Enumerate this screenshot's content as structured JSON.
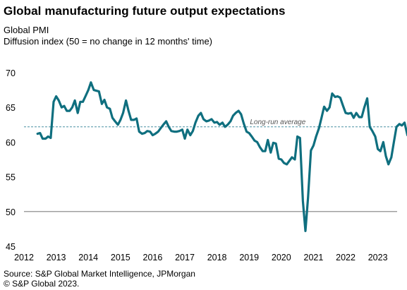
{
  "header": {
    "title": "Global manufacturing future output expectations",
    "subtitle_line1": "Global  PMI",
    "subtitle_line2": "Diffusion index  (50 = no change in 12 months' time)"
  },
  "footer": {
    "source": "Source: S&P Global Market Intelligence, JPMorgan",
    "copyright": "© S&P Global 2023."
  },
  "colors": {
    "series": "#0f6f7f",
    "reference": "#808080",
    "average": "#4a90a4"
  },
  "chart_data": {
    "type": "line",
    "title": "Global manufacturing future output expectations",
    "xlabel": "",
    "ylabel": "Diffusion index  (50 = no change in 12 months' time)",
    "xlim": [
      2012,
      2023.6
    ],
    "ylim": [
      45,
      70
    ],
    "x_ticks": [
      2012,
      2013,
      2014,
      2015,
      2016,
      2017,
      2018,
      2019,
      2020,
      2021,
      2022,
      2023
    ],
    "y_ticks": [
      45,
      50,
      55,
      60,
      65,
      70
    ],
    "grid": false,
    "reference_lines": [
      {
        "y": 50,
        "style": "solid",
        "label": ""
      },
      {
        "y": 62.2,
        "style": "dashed",
        "label": "Long-run average"
      }
    ],
    "series": [
      {
        "name": "Global PMI",
        "points": [
          [
            2012.42,
            61.2
          ],
          [
            2012.5,
            61.3
          ],
          [
            2012.58,
            60.5
          ],
          [
            2012.67,
            60.5
          ],
          [
            2012.75,
            60.8
          ],
          [
            2012.83,
            60.6
          ],
          [
            2012.92,
            65.8
          ],
          [
            2013.0,
            66.6
          ],
          [
            2013.08,
            66.0
          ],
          [
            2013.17,
            65.0
          ],
          [
            2013.25,
            65.2
          ],
          [
            2013.33,
            64.5
          ],
          [
            2013.42,
            64.5
          ],
          [
            2013.5,
            65.0
          ],
          [
            2013.58,
            66.0
          ],
          [
            2013.67,
            64.2
          ],
          [
            2013.75,
            65.8
          ],
          [
            2013.83,
            65.8
          ],
          [
            2013.92,
            66.7
          ],
          [
            2014.0,
            67.5
          ],
          [
            2014.08,
            68.6
          ],
          [
            2014.17,
            67.5
          ],
          [
            2014.25,
            67.4
          ],
          [
            2014.33,
            67.3
          ],
          [
            2014.42,
            65.5
          ],
          [
            2014.5,
            66.1
          ],
          [
            2014.58,
            65.0
          ],
          [
            2014.67,
            64.8
          ],
          [
            2014.75,
            63.5
          ],
          [
            2014.83,
            63.0
          ],
          [
            2014.92,
            62.5
          ],
          [
            2015.0,
            63.2
          ],
          [
            2015.08,
            64.2
          ],
          [
            2015.17,
            66.0
          ],
          [
            2015.25,
            64.5
          ],
          [
            2015.33,
            63.2
          ],
          [
            2015.42,
            63.2
          ],
          [
            2015.5,
            63.4
          ],
          [
            2015.58,
            61.5
          ],
          [
            2015.67,
            61.2
          ],
          [
            2015.75,
            61.3
          ],
          [
            2015.83,
            61.6
          ],
          [
            2015.92,
            61.5
          ],
          [
            2016.0,
            61.0
          ],
          [
            2016.08,
            61.2
          ],
          [
            2016.17,
            61.5
          ],
          [
            2016.25,
            62.0
          ],
          [
            2016.33,
            62.5
          ],
          [
            2016.42,
            63.0
          ],
          [
            2016.5,
            62.2
          ],
          [
            2016.58,
            61.6
          ],
          [
            2016.67,
            61.5
          ],
          [
            2016.75,
            61.5
          ],
          [
            2016.83,
            61.6
          ],
          [
            2016.92,
            61.8
          ],
          [
            2017.0,
            60.5
          ],
          [
            2017.08,
            61.8
          ],
          [
            2017.17,
            61.0
          ],
          [
            2017.25,
            61.6
          ],
          [
            2017.33,
            62.8
          ],
          [
            2017.42,
            63.8
          ],
          [
            2017.5,
            64.2
          ],
          [
            2017.58,
            63.3
          ],
          [
            2017.67,
            63.0
          ],
          [
            2017.75,
            63.1
          ],
          [
            2017.83,
            63.3
          ],
          [
            2017.92,
            62.8
          ],
          [
            2018.0,
            62.9
          ],
          [
            2018.08,
            62.5
          ],
          [
            2018.17,
            62.8
          ],
          [
            2018.25,
            62.2
          ],
          [
            2018.33,
            62.5
          ],
          [
            2018.42,
            63.0
          ],
          [
            2018.5,
            63.8
          ],
          [
            2018.58,
            64.2
          ],
          [
            2018.67,
            64.5
          ],
          [
            2018.75,
            64.0
          ],
          [
            2018.83,
            62.7
          ],
          [
            2018.92,
            61.5
          ],
          [
            2019.0,
            61.3
          ],
          [
            2019.08,
            60.8
          ],
          [
            2019.17,
            60.2
          ],
          [
            2019.25,
            60.0
          ],
          [
            2019.33,
            59.3
          ],
          [
            2019.42,
            58.7
          ],
          [
            2019.5,
            58.7
          ],
          [
            2019.58,
            60.3
          ],
          [
            2019.67,
            58.5
          ],
          [
            2019.75,
            59.9
          ],
          [
            2019.83,
            59.8
          ],
          [
            2019.92,
            57.6
          ],
          [
            2020.0,
            57.5
          ],
          [
            2020.08,
            57.0
          ],
          [
            2020.17,
            56.8
          ],
          [
            2020.25,
            57.3
          ],
          [
            2020.33,
            57.8
          ],
          [
            2020.42,
            57.5
          ],
          [
            2020.5,
            60.8
          ],
          [
            2020.58,
            60.6
          ],
          [
            2020.67,
            51.5
          ],
          [
            2020.75,
            47.2
          ],
          [
            2020.83,
            52.0
          ],
          [
            2020.92,
            58.8
          ],
          [
            2021.0,
            59.5
          ],
          [
            2021.08,
            60.8
          ],
          [
            2021.17,
            62.0
          ],
          [
            2021.25,
            63.5
          ],
          [
            2021.33,
            65.1
          ],
          [
            2021.42,
            64.5
          ],
          [
            2021.5,
            65.0
          ],
          [
            2021.58,
            67.0
          ],
          [
            2021.67,
            66.5
          ],
          [
            2021.75,
            66.6
          ],
          [
            2021.83,
            66.4
          ],
          [
            2021.92,
            65.2
          ],
          [
            2022.0,
            64.2
          ],
          [
            2022.08,
            64.1
          ],
          [
            2022.17,
            64.2
          ],
          [
            2022.25,
            63.5
          ],
          [
            2022.33,
            64.2
          ],
          [
            2022.42,
            63.6
          ],
          [
            2022.5,
            63.6
          ],
          [
            2022.58,
            65.0
          ],
          [
            2022.67,
            66.3
          ],
          [
            2022.75,
            62.2
          ],
          [
            2022.83,
            61.6
          ],
          [
            2022.92,
            60.8
          ],
          [
            2023.0,
            59.0
          ],
          [
            2023.08,
            58.7
          ],
          [
            2023.17,
            60.0
          ],
          [
            2023.25,
            58.0
          ],
          [
            2023.33,
            56.8
          ],
          [
            2023.42,
            57.8
          ],
          [
            2023.5,
            60.0
          ],
          [
            2023.58,
            62.2
          ],
          [
            2023.67,
            62.6
          ],
          [
            2023.75,
            62.4
          ],
          [
            2023.83,
            62.8
          ],
          [
            2023.92,
            61.0
          ]
        ]
      }
    ]
  }
}
